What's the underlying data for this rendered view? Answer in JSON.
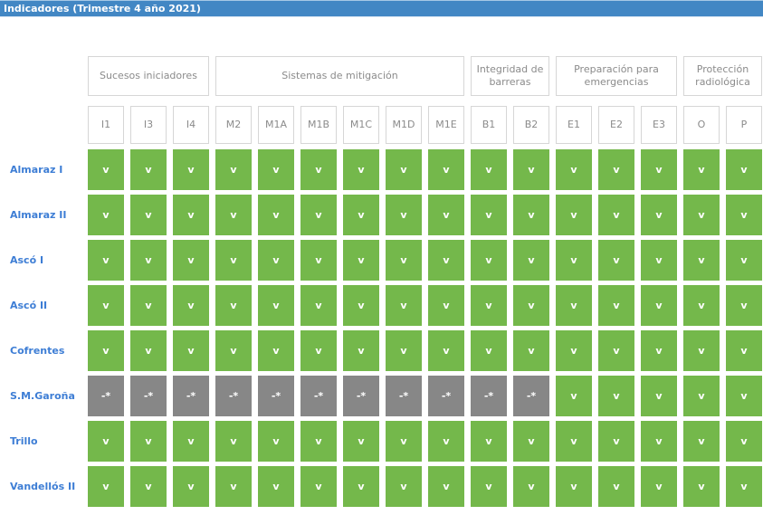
{
  "title_bar": {
    "title": "Indicadores (Trimestre 4 año 2021)",
    "background": "#4287c4",
    "text_color": "#ffffff"
  },
  "table": {
    "groups": [
      {
        "label": "Sucesos iniciadores",
        "span": 3
      },
      {
        "label": "Sistemas de mitigación",
        "span": 6
      },
      {
        "label": "Integridad de\nbarreras",
        "span": 2
      },
      {
        "label": "Preparación para\nemergencias",
        "span": 3
      },
      {
        "label": "Protección\nradiológica",
        "span": 2
      }
    ],
    "columns": [
      "I1",
      "I3",
      "I4",
      "M2",
      "M1A",
      "M1B",
      "M1C",
      "M1D",
      "M1E",
      "B1",
      "B2",
      "E1",
      "E2",
      "E3",
      "O",
      "P"
    ],
    "rows": [
      {
        "label": "Almaraz I",
        "cells": [
          "v",
          "v",
          "v",
          "v",
          "v",
          "v",
          "v",
          "v",
          "v",
          "v",
          "v",
          "v",
          "v",
          "v",
          "v",
          "v"
        ]
      },
      {
        "label": "Almaraz II",
        "cells": [
          "v",
          "v",
          "v",
          "v",
          "v",
          "v",
          "v",
          "v",
          "v",
          "v",
          "v",
          "v",
          "v",
          "v",
          "v",
          "v"
        ]
      },
      {
        "label": "Ascó I",
        "cells": [
          "v",
          "v",
          "v",
          "v",
          "v",
          "v",
          "v",
          "v",
          "v",
          "v",
          "v",
          "v",
          "v",
          "v",
          "v",
          "v"
        ]
      },
      {
        "label": "Ascó II",
        "cells": [
          "v",
          "v",
          "v",
          "v",
          "v",
          "v",
          "v",
          "v",
          "v",
          "v",
          "v",
          "v",
          "v",
          "v",
          "v",
          "v"
        ]
      },
      {
        "label": "Cofrentes",
        "cells": [
          "v",
          "v",
          "v",
          "v",
          "v",
          "v",
          "v",
          "v",
          "v",
          "v",
          "v",
          "v",
          "v",
          "v",
          "v",
          "v"
        ]
      },
      {
        "label": "S.M.Garoña",
        "cells": [
          "-*",
          "-*",
          "-*",
          "-*",
          "-*",
          "-*",
          "-*",
          "-*",
          "-*",
          "-*",
          "-*",
          "v",
          "v",
          "v",
          "v",
          "v"
        ]
      },
      {
        "label": "Trillo",
        "cells": [
          "v",
          "v",
          "v",
          "v",
          "v",
          "v",
          "v",
          "v",
          "v",
          "v",
          "v",
          "v",
          "v",
          "v",
          "v",
          "v"
        ]
      },
      {
        "label": "Vandellós II",
        "cells": [
          "v",
          "v",
          "v",
          "v",
          "v",
          "v",
          "v",
          "v",
          "v",
          "v",
          "v",
          "v",
          "v",
          "v",
          "v",
          "v"
        ]
      }
    ],
    "cell_styles": {
      "v": {
        "background": "#74b84b",
        "color": "#ffffff"
      },
      "-*": {
        "background": "#878787",
        "color": "#ffffff"
      }
    },
    "row_label_color": "#3e7ed5",
    "header_text_color": "#8b8b8b",
    "header_border_color": "#d6d6d6"
  }
}
